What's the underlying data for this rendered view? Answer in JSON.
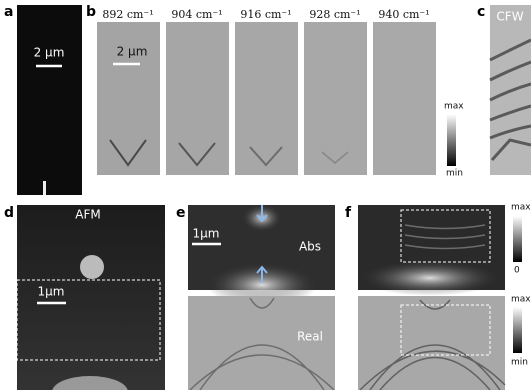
{
  "panels": {
    "a": {
      "label": "a",
      "scale_bar": "2 μm"
    },
    "b": {
      "label": "b",
      "scale_bar": "2 μm",
      "frames": [
        "892 cm⁻¹",
        "904 cm⁻¹",
        "916 cm⁻¹",
        "928 cm⁻¹",
        "940 cm⁻¹"
      ],
      "colorbar": {
        "max": "max",
        "min": "min"
      }
    },
    "c": {
      "label": "c",
      "title": "CFW"
    },
    "d": {
      "label": "d",
      "title": "AFM",
      "scale_bar": "1μm"
    },
    "e": {
      "label": "e",
      "scale_bar": "1μm",
      "top": "Abs",
      "bottom": "Real"
    },
    "f": {
      "label": "f",
      "colorbar_top": {
        "max": "max",
        "min": "0"
      },
      "colorbar_bottom": {
        "max": "max",
        "min": "min"
      }
    }
  }
}
